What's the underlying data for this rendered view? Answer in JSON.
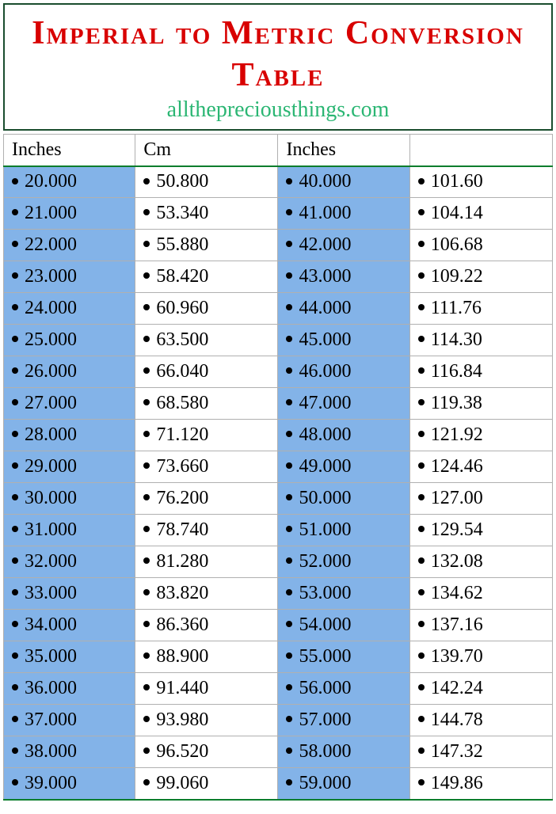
{
  "header": {
    "title": "Imperial to Metric Conversion Table",
    "subtitle": "allthepreciousthings.com"
  },
  "table": {
    "columns": [
      "Inches",
      "Cm",
      "Inches",
      ""
    ],
    "column_bg": [
      "blue",
      "white",
      "blue",
      "white"
    ],
    "rows": [
      [
        "20.000",
        "50.800",
        "40.000",
        "101.60"
      ],
      [
        "21.000",
        "53.340",
        "41.000",
        "104.14"
      ],
      [
        "22.000",
        "55.880",
        "42.000",
        "106.68"
      ],
      [
        "23.000",
        "58.420",
        "43.000",
        "109.22"
      ],
      [
        "24.000",
        "60.960",
        "44.000",
        "111.76"
      ],
      [
        "25.000",
        "63.500",
        "45.000",
        "114.30"
      ],
      [
        "26.000",
        "66.040",
        "46.000",
        "116.84"
      ],
      [
        "27.000",
        "68.580",
        "47.000",
        "119.38"
      ],
      [
        "28.000",
        "71.120",
        "48.000",
        "121.92"
      ],
      [
        "29.000",
        "73.660",
        "49.000",
        "124.46"
      ],
      [
        "30.000",
        "76.200",
        "50.000",
        "127.00"
      ],
      [
        "31.000",
        "78.740",
        "51.000",
        "129.54"
      ],
      [
        "32.000",
        "81.280",
        "52.000",
        "132.08"
      ],
      [
        "33.000",
        "83.820",
        "53.000",
        "134.62"
      ],
      [
        "34.000",
        "86.360",
        "54.000",
        "137.16"
      ],
      [
        "35.000",
        "88.900",
        "55.000",
        "139.70"
      ],
      [
        "36.000",
        "91.440",
        "56.000",
        "142.24"
      ],
      [
        "37.000",
        "93.980",
        "57.000",
        "144.78"
      ],
      [
        "38.000",
        "96.520",
        "58.000",
        "147.32"
      ],
      [
        "39.000",
        "99.060",
        "59.000",
        "149.86"
      ]
    ]
  },
  "colors": {
    "title": "#d80000",
    "subtitle": "#2bb673",
    "header_border": "#1a4d2e",
    "cell_blue": "#83b3e8",
    "cell_white": "#ffffff",
    "rule_green": "#0a7d2c",
    "grid": "#b0b0b0"
  }
}
